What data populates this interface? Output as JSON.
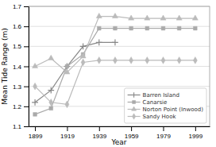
{
  "chart_data": {
    "type": "line",
    "xlabel": "Year",
    "ylabel": "Mean Tide Range (m)",
    "xlim": [
      1895,
      2008
    ],
    "ylim": [
      1.1,
      1.7
    ],
    "xticks": [
      1899,
      1919,
      1939,
      1959,
      1979,
      1999
    ],
    "yticks": [
      1.1,
      1.2,
      1.3,
      1.4,
      1.5,
      1.6,
      1.7
    ],
    "grid": "y",
    "legend": "lower right",
    "series": [
      {
        "name": "Barren Island",
        "color": "#888888",
        "marker": "plus",
        "line_style": "solid",
        "x": [
          1899,
          1909,
          1919,
          1929,
          1939,
          1949
        ],
        "values": [
          1.22,
          1.28,
          1.4,
          1.5,
          1.52,
          1.52
        ]
      },
      {
        "name": "Canarsie",
        "color": "#aaaaaa",
        "marker": "square",
        "line_style": "solid",
        "x": [
          1899,
          1909,
          1919,
          1929,
          1939,
          1949,
          1959,
          1969,
          1979,
          1989,
          1999
        ],
        "values": [
          1.16,
          1.19,
          1.4,
          1.46,
          1.59,
          1.59,
          1.59,
          1.59,
          1.59,
          1.59,
          1.59
        ]
      },
      {
        "name": "Norton Point (Inwood)",
        "color": "#bbbbbb",
        "marker": "triangle-up",
        "line_style": "solid",
        "x": [
          1899,
          1909,
          1919,
          1929,
          1939,
          1949,
          1959,
          1969,
          1979,
          1989,
          1999
        ],
        "values": [
          1.4,
          1.44,
          1.37,
          1.45,
          1.65,
          1.65,
          1.64,
          1.64,
          1.64,
          1.64,
          1.64
        ]
      },
      {
        "name": "Sandy Hook",
        "color": "#bbbbbb",
        "marker": "diamond",
        "line_style": "solid",
        "x": [
          1899,
          1909,
          1919,
          1929,
          1939,
          1949,
          1959,
          1969,
          1979,
          1989,
          1999
        ],
        "values": [
          1.3,
          1.22,
          1.21,
          1.42,
          1.43,
          1.43,
          1.43,
          1.43,
          1.43,
          1.43,
          1.43
        ]
      }
    ]
  }
}
